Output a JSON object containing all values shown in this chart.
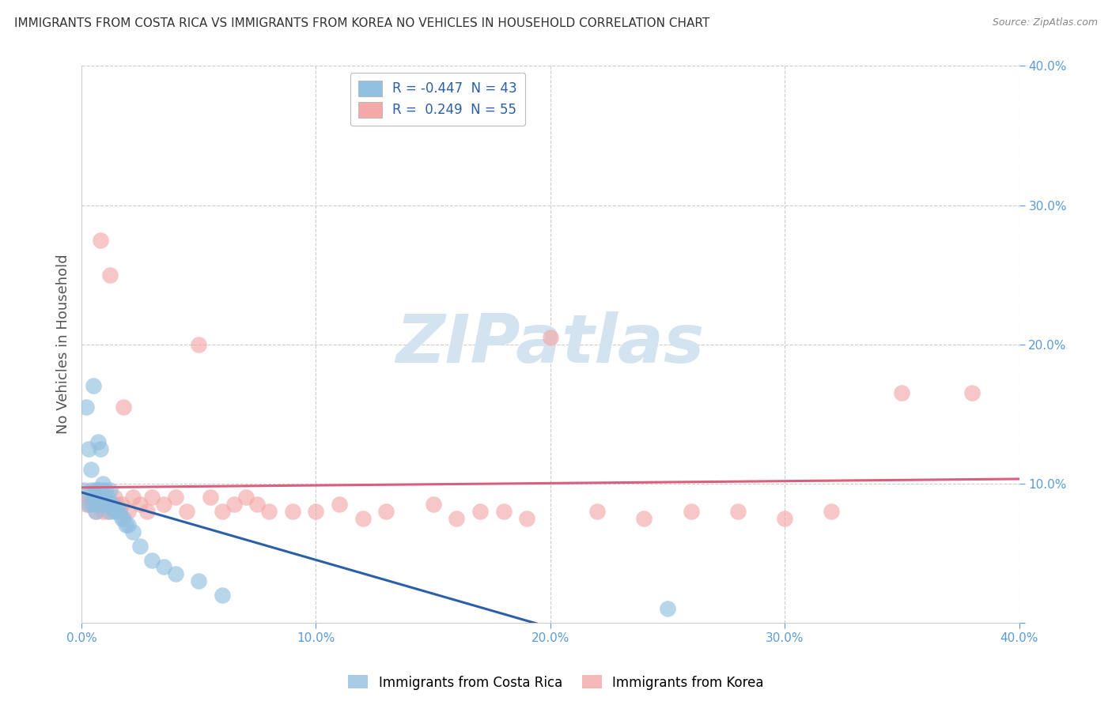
{
  "title": "IMMIGRANTS FROM COSTA RICA VS IMMIGRANTS FROM KOREA NO VEHICLES IN HOUSEHOLD CORRELATION CHART",
  "source": "Source: ZipAtlas.com",
  "ylabel": "No Vehicles in Household",
  "xlim": [
    0.0,
    0.4
  ],
  "ylim": [
    0.0,
    0.4
  ],
  "legend_label_1": "Immigrants from Costa Rica",
  "legend_label_2": "Immigrants from Korea",
  "R1": -0.447,
  "N1": 43,
  "R2": 0.249,
  "N2": 55,
  "color1": "#92c0e0",
  "color2": "#f4a8a8",
  "trendline1_color": "#2b5fa8",
  "trendline2_color": "#d95f7f",
  "background_color": "#ffffff",
  "grid_color": "#cccccc",
  "tick_color": "#5b9bd5",
  "watermark_text": "ZIPatlas",
  "watermark_color": "#d3e4f0",
  "costa_rica_x": [
    0.001,
    0.002,
    0.003,
    0.003,
    0.004,
    0.004,
    0.005,
    0.005,
    0.005,
    0.006,
    0.006,
    0.006,
    0.007,
    0.007,
    0.007,
    0.008,
    0.008,
    0.008,
    0.009,
    0.009,
    0.01,
    0.01,
    0.01,
    0.011,
    0.011,
    0.012,
    0.012,
    0.013,
    0.014,
    0.015,
    0.016,
    0.017,
    0.018,
    0.019,
    0.02,
    0.022,
    0.025,
    0.03,
    0.035,
    0.04,
    0.05,
    0.06,
    0.25
  ],
  "costa_rica_y": [
    0.095,
    0.155,
    0.085,
    0.125,
    0.095,
    0.11,
    0.17,
    0.085,
    0.09,
    0.095,
    0.08,
    0.09,
    0.085,
    0.095,
    0.13,
    0.095,
    0.09,
    0.125,
    0.09,
    0.1,
    0.085,
    0.09,
    0.095,
    0.085,
    0.09,
    0.08,
    0.095,
    0.085,
    0.08,
    0.08,
    0.08,
    0.075,
    0.075,
    0.07,
    0.07,
    0.065,
    0.055,
    0.045,
    0.04,
    0.035,
    0.03,
    0.02,
    0.01
  ],
  "korea_x": [
    0.002,
    0.003,
    0.004,
    0.005,
    0.006,
    0.006,
    0.007,
    0.007,
    0.008,
    0.008,
    0.009,
    0.01,
    0.01,
    0.011,
    0.012,
    0.013,
    0.014,
    0.015,
    0.016,
    0.017,
    0.018,
    0.02,
    0.022,
    0.025,
    0.028,
    0.03,
    0.035,
    0.04,
    0.045,
    0.05,
    0.055,
    0.06,
    0.065,
    0.07,
    0.075,
    0.08,
    0.09,
    0.1,
    0.11,
    0.12,
    0.13,
    0.15,
    0.16,
    0.17,
    0.18,
    0.19,
    0.2,
    0.22,
    0.24,
    0.26,
    0.28,
    0.3,
    0.32,
    0.35,
    0.38
  ],
  "korea_y": [
    0.085,
    0.09,
    0.085,
    0.09,
    0.08,
    0.095,
    0.085,
    0.085,
    0.275,
    0.09,
    0.08,
    0.085,
    0.09,
    0.08,
    0.25,
    0.085,
    0.09,
    0.085,
    0.08,
    0.085,
    0.155,
    0.08,
    0.09,
    0.085,
    0.08,
    0.09,
    0.085,
    0.09,
    0.08,
    0.2,
    0.09,
    0.08,
    0.085,
    0.09,
    0.085,
    0.08,
    0.08,
    0.08,
    0.085,
    0.075,
    0.08,
    0.085,
    0.075,
    0.08,
    0.08,
    0.075,
    0.205,
    0.08,
    0.075,
    0.08,
    0.08,
    0.075,
    0.08,
    0.165,
    0.165
  ]
}
